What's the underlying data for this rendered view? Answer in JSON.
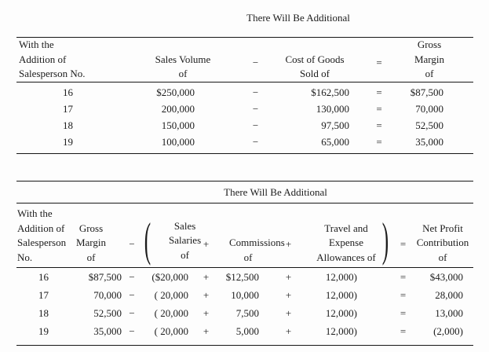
{
  "colors": {
    "background": "#fdfdfd",
    "text": "#1c1c1c",
    "rule": "#161616"
  },
  "table1": {
    "title": "There Will Be Additional",
    "header": {
      "salesperson_lines": [
        "With the",
        "Addition of",
        "Salesperson No."
      ],
      "sales_volume_lines": [
        "Sales Volume",
        "of"
      ],
      "minus": "−",
      "cogs_lines": [
        "Cost of Goods",
        "Sold of"
      ],
      "equals": "=",
      "gross_margin_lines": [
        "Gross Margin",
        "of"
      ]
    },
    "rows": [
      {
        "no": "16",
        "sales_volume": "$250,000",
        "minus": "−",
        "cogs": "$162,500",
        "equals": "=",
        "gross_margin": "$87,500"
      },
      {
        "no": "17",
        "sales_volume": "200,000",
        "minus": "−",
        "cogs": "130,000",
        "equals": "=",
        "gross_margin": "70,000"
      },
      {
        "no": "18",
        "sales_volume": "150,000",
        "minus": "−",
        "cogs": "97,500",
        "equals": "=",
        "gross_margin": "52,500"
      },
      {
        "no": "19",
        "sales_volume": "100,000",
        "minus": "−",
        "cogs": "65,000",
        "equals": "=",
        "gross_margin": "35,000"
      }
    ]
  },
  "table2": {
    "title": "There Will Be Additional",
    "header": {
      "salesperson_lines": [
        "With the",
        "Addition of",
        "Salesperson",
        "No."
      ],
      "gross_margin_lines": [
        "Gross",
        "Margin",
        "of"
      ],
      "minus": "−",
      "paren_open": "(",
      "sales_salaries_lines": [
        "Sales",
        "Salaries",
        "of"
      ],
      "plus1": "+",
      "commissions_lines": [
        "Commissions",
        "of"
      ],
      "plus2": "+",
      "travel_lines": [
        "Travel and",
        "Expense",
        "Allowances of"
      ],
      "paren_close": ")",
      "equals": "=",
      "net_profit_lines": [
        "Net Profit",
        "Contribution",
        "of"
      ]
    },
    "rows": [
      {
        "no": "16",
        "gross_margin": "$87,500",
        "minus": "−",
        "salaries": "($20,000",
        "plus1": "+",
        "commissions": "$12,500",
        "plus2": "+",
        "travel": "12,000)",
        "equals": "=",
        "net_profit": "$43,000"
      },
      {
        "no": "17",
        "gross_margin": "70,000",
        "minus": "−",
        "salaries": "( 20,000",
        "plus1": "+",
        "commissions": "10,000",
        "plus2": "+",
        "travel": "12,000)",
        "equals": "=",
        "net_profit": "28,000"
      },
      {
        "no": "18",
        "gross_margin": "52,500",
        "minus": "−",
        "salaries": "( 20,000",
        "plus1": "+",
        "commissions": "7,500",
        "plus2": "+",
        "travel": "12,000)",
        "equals": "=",
        "net_profit": "13,000"
      },
      {
        "no": "19",
        "gross_margin": "35,000",
        "minus": "−",
        "salaries": "( 20,000",
        "plus1": "+",
        "commissions": "5,000",
        "plus2": "+",
        "travel": "12,000)",
        "equals": "=",
        "net_profit": "(2,000)"
      }
    ]
  }
}
